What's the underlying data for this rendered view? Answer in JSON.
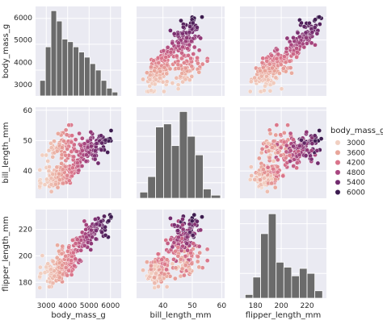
{
  "chart_data": {
    "type": "scatter",
    "title": "",
    "variables": [
      {
        "name": "body_mass_g",
        "label": "body_mass_g",
        "lim": [
          2500,
          6500
        ],
        "ticks": [
          3000,
          4000,
          5000,
          6000
        ],
        "tick_labels_x": [
          "3000",
          "4000",
          "5000",
          "6000"
        ],
        "tick_labels_y": [
          "3000",
          "4000",
          "5000",
          "6000"
        ]
      },
      {
        "name": "bill_length_mm",
        "label": "bill_length_mm",
        "lim": [
          31,
          61
        ],
        "ticks": [
          40,
          50,
          60
        ],
        "tick_labels_x": [
          "40",
          "50",
          "60"
        ],
        "tick_labels_y": [
          "40",
          "50",
          "60"
        ]
      },
      {
        "name": "flipper_length_mm",
        "label": "flipper_length_mm",
        "lim": [
          168,
          235
        ],
        "ticks": [
          180,
          200,
          220
        ],
        "tick_labels_x": [
          "180",
          "200",
          "220"
        ],
        "tick_labels_y": [
          "180",
          "200",
          "220"
        ]
      }
    ],
    "hue": {
      "name": "body_mass_g",
      "legend_title": "body_mass_g",
      "legend_labels": [
        "3000",
        "3600",
        "4200",
        "4800",
        "5400",
        "6000"
      ],
      "legend_colors": [
        "#f1cfc1",
        "#e8a59a",
        "#d9738a",
        "#a8467f",
        "#722b6e",
        "#3b1b4f"
      ],
      "legend_placement": "right"
    },
    "histograms": {
      "body_mass_g": {
        "bins": [
          2700,
          2960,
          3220,
          3480,
          3740,
          4000,
          4260,
          4520,
          4780,
          5040,
          5300,
          5560,
          5820,
          6080,
          6340
        ],
        "counts": [
          12,
          38,
          66,
          58,
          44,
          42,
          38,
          34,
          30,
          25,
          20,
          12,
          6,
          3
        ]
      },
      "bill_length_mm": {
        "bins": [
          32.1,
          34.8,
          37.5,
          40.2,
          42.9,
          45.6,
          48.3,
          51.0,
          53.7,
          56.4,
          59.6
        ],
        "counts": [
          4,
          14,
          46,
          48,
          34,
          56,
          40,
          28,
          6,
          2
        ]
      },
      "flipper_length_mm": {
        "bins": [
          172,
          178,
          184,
          190,
          196,
          202,
          208,
          214,
          220,
          226,
          232
        ],
        "counts": [
          3,
          17,
          52,
          68,
          29,
          25,
          18,
          24,
          20,
          6
        ]
      }
    },
    "grid": true,
    "style": {
      "axes_bg": "#eaeaf2",
      "grid_color": "#ffffff",
      "bar_color": "#6b6b6b",
      "point_edge": "#ffffff"
    }
  }
}
